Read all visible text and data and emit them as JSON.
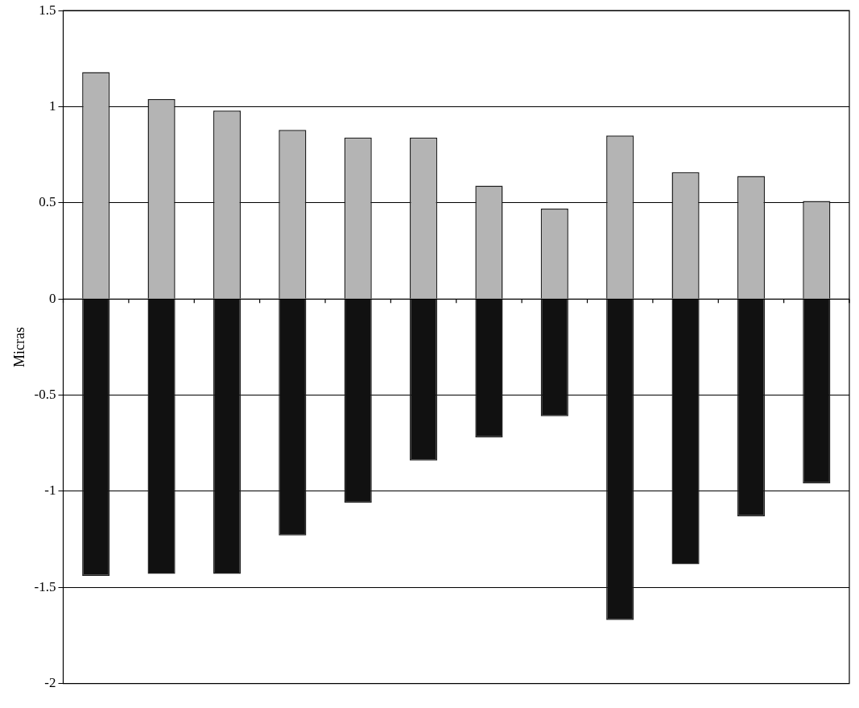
{
  "chart_data": {
    "type": "bar",
    "ylabel": "Micras",
    "stacked": true,
    "grid": "y",
    "categories": [
      null,
      null,
      null,
      null,
      null,
      null,
      null,
      null,
      null,
      null,
      null,
      null
    ],
    "series": [
      {
        "color": "#b4b4b4",
        "values": [
          1.18,
          1.04,
          0.98,
          0.88,
          0.84,
          0.84,
          0.59,
          0.47,
          0.85,
          0.66,
          0.64,
          0.51
        ]
      },
      {
        "color": "#111111",
        "values": [
          -1.44,
          -1.43,
          -1.43,
          -1.23,
          -1.06,
          -0.84,
          -0.72,
          -0.61,
          -1.67,
          -1.38,
          -1.13,
          -0.96
        ]
      }
    ],
    "ylim": [
      -2,
      1.5
    ],
    "yticks": [
      -2,
      -1.5,
      -1,
      -0.5,
      0,
      0.5,
      1,
      1.5
    ]
  }
}
